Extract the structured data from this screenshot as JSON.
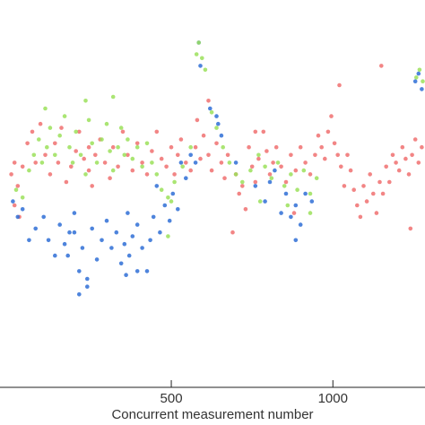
{
  "chart_data": {
    "type": "scatter",
    "xlabel": "Concurrent measurement number",
    "ylabel": "",
    "xlim": [
      -30,
      1285
    ],
    "ylim": [
      0,
      100
    ],
    "x_ticks": [
      500,
      1000
    ],
    "x_tick_labels": [
      "500",
      "1000"
    ],
    "y_ticks": [],
    "grid": false,
    "legend": "none",
    "series": [
      {
        "color": "#f07070",
        "points": [
          [
            5,
            55
          ],
          [
            15,
            58
          ],
          [
            25,
            52
          ],
          [
            40,
            57
          ],
          [
            55,
            63
          ],
          [
            70,
            66
          ],
          [
            80,
            58
          ],
          [
            95,
            68
          ],
          [
            110,
            60
          ],
          [
            125,
            55
          ],
          [
            140,
            63
          ],
          [
            150,
            58
          ],
          [
            160,
            67
          ],
          [
            175,
            53
          ],
          [
            190,
            57
          ],
          [
            205,
            61
          ],
          [
            215,
            66
          ],
          [
            230,
            59
          ],
          [
            245,
            56
          ],
          [
            255,
            52
          ],
          [
            265,
            60
          ],
          [
            280,
            64
          ],
          [
            295,
            58
          ],
          [
            310,
            54
          ],
          [
            320,
            62
          ],
          [
            335,
            57
          ],
          [
            350,
            66
          ],
          [
            365,
            60
          ],
          [
            380,
            56
          ],
          [
            395,
            63
          ],
          [
            410,
            58
          ],
          [
            425,
            55
          ],
          [
            440,
            61
          ],
          [
            455,
            66
          ],
          [
            470,
            59
          ],
          [
            485,
            57
          ],
          [
            500,
            62
          ],
          [
            510,
            55
          ],
          [
            520,
            60
          ],
          [
            530,
            64
          ],
          [
            545,
            58
          ],
          [
            560,
            56
          ],
          [
            575,
            62
          ],
          [
            590,
            59
          ],
          [
            600,
            65
          ],
          [
            615,
            60
          ],
          [
            625,
            56
          ],
          [
            640,
            63
          ],
          [
            655,
            58
          ],
          [
            665,
            54
          ],
          [
            675,
            60
          ],
          [
            690,
            40
          ],
          [
            700,
            55
          ],
          [
            710,
            50
          ],
          [
            720,
            52
          ],
          [
            730,
            46
          ],
          [
            740,
            62
          ],
          [
            750,
            57
          ],
          [
            760,
            53
          ],
          [
            770,
            59
          ],
          [
            785,
            66
          ],
          [
            795,
            61
          ],
          [
            805,
            55
          ],
          [
            815,
            58
          ],
          [
            825,
            62
          ],
          [
            840,
            57
          ],
          [
            855,
            53
          ],
          [
            870,
            60
          ],
          [
            885,
            56
          ],
          [
            900,
            62
          ],
          [
            915,
            58
          ],
          [
            930,
            55
          ],
          [
            945,
            60
          ],
          [
            955,
            65
          ],
          [
            965,
            62
          ],
          [
            975,
            59
          ],
          [
            985,
            66
          ],
          [
            995,
            70
          ],
          [
            1005,
            63
          ],
          [
            1015,
            60
          ],
          [
            1025,
            57
          ],
          [
            1035,
            52
          ],
          [
            1045,
            60
          ],
          [
            1055,
            56
          ],
          [
            1065,
            51
          ],
          [
            1075,
            47
          ],
          [
            1085,
            44
          ],
          [
            1095,
            52
          ],
          [
            1105,
            48
          ],
          [
            1115,
            55
          ],
          [
            1125,
            50
          ],
          [
            1135,
            45
          ],
          [
            1145,
            53
          ],
          [
            1155,
            50
          ],
          [
            1165,
            57
          ],
          [
            1175,
            53
          ],
          [
            1185,
            60
          ],
          [
            1195,
            58
          ],
          [
            1205,
            56
          ],
          [
            1215,
            62
          ],
          [
            1225,
            59
          ],
          [
            1235,
            55
          ],
          [
            1245,
            60
          ],
          [
            1255,
            64
          ],
          [
            1265,
            58
          ],
          [
            1275,
            62
          ],
          [
            1020,
            78
          ],
          [
            1150,
            83
          ],
          [
            615,
            74
          ],
          [
            760,
            66
          ],
          [
            30,
            44
          ],
          [
            15,
            47
          ],
          [
            245,
            62
          ],
          [
            580,
            69
          ],
          [
            880,
            45
          ],
          [
            1240,
            41
          ]
        ]
      },
      {
        "color": "#2f6fd6",
        "points": [
          [
            10,
            48
          ],
          [
            25,
            44
          ],
          [
            40,
            46
          ],
          [
            60,
            38
          ],
          [
            80,
            41
          ],
          [
            105,
            44
          ],
          [
            120,
            38
          ],
          [
            140,
            34
          ],
          [
            155,
            42
          ],
          [
            170,
            37
          ],
          [
            185,
            40
          ],
          [
            200,
            45
          ],
          [
            215,
            30
          ],
          [
            225,
            36
          ],
          [
            240,
            28
          ],
          [
            255,
            41
          ],
          [
            270,
            33
          ],
          [
            285,
            38
          ],
          [
            300,
            43
          ],
          [
            315,
            36
          ],
          [
            330,
            40
          ],
          [
            345,
            32
          ],
          [
            355,
            37
          ],
          [
            365,
            45
          ],
          [
            370,
            34
          ],
          [
            380,
            39
          ],
          [
            395,
            42
          ],
          [
            410,
            36
          ],
          [
            425,
            30
          ],
          [
            435,
            38
          ],
          [
            445,
            44
          ],
          [
            455,
            52
          ],
          [
            465,
            40
          ],
          [
            480,
            47
          ],
          [
            495,
            43
          ],
          [
            505,
            50
          ],
          [
            530,
            58
          ],
          [
            545,
            54
          ],
          [
            560,
            60
          ],
          [
            585,
            89
          ],
          [
            590,
            83
          ],
          [
            620,
            72
          ],
          [
            640,
            70
          ],
          [
            655,
            65
          ],
          [
            700,
            58
          ],
          [
            760,
            52
          ],
          [
            790,
            48
          ],
          [
            805,
            53
          ],
          [
            820,
            56
          ],
          [
            840,
            45
          ],
          [
            855,
            50
          ],
          [
            870,
            44
          ],
          [
            885,
            47
          ],
          [
            900,
            42
          ],
          [
            915,
            50
          ],
          [
            935,
            48
          ],
          [
            1255,
            79
          ],
          [
            1265,
            81
          ],
          [
            1275,
            77
          ],
          [
            215,
            24
          ],
          [
            240,
            26
          ],
          [
            200,
            40
          ],
          [
            180,
            34
          ],
          [
            360,
            29
          ],
          [
            395,
            30
          ],
          [
            520,
            46
          ],
          [
            885,
            38
          ],
          [
            575,
            58
          ],
          [
            645,
            68
          ]
        ]
      },
      {
        "color": "#9be05a",
        "points": [
          [
            20,
            51
          ],
          [
            40,
            49
          ],
          [
            60,
            56
          ],
          [
            75,
            60
          ],
          [
            90,
            64
          ],
          [
            100,
            58
          ],
          [
            115,
            62
          ],
          [
            125,
            67
          ],
          [
            140,
            60
          ],
          [
            155,
            65
          ],
          [
            170,
            70
          ],
          [
            185,
            62
          ],
          [
            195,
            58
          ],
          [
            205,
            66
          ],
          [
            220,
            60
          ],
          [
            235,
            55
          ],
          [
            245,
            69
          ],
          [
            255,
            63
          ],
          [
            270,
            58
          ],
          [
            285,
            64
          ],
          [
            300,
            68
          ],
          [
            310,
            61
          ],
          [
            320,
            56
          ],
          [
            335,
            62
          ],
          [
            345,
            67
          ],
          [
            355,
            60
          ],
          [
            365,
            64
          ],
          [
            380,
            59
          ],
          [
            395,
            62
          ],
          [
            410,
            57
          ],
          [
            425,
            63
          ],
          [
            440,
            58
          ],
          [
            455,
            55
          ],
          [
            470,
            51
          ],
          [
            490,
            49
          ],
          [
            510,
            53
          ],
          [
            535,
            57
          ],
          [
            560,
            62
          ],
          [
            578,
            86
          ],
          [
            585,
            89
          ],
          [
            595,
            85
          ],
          [
            605,
            82
          ],
          [
            625,
            71
          ],
          [
            640,
            67
          ],
          [
            660,
            62
          ],
          [
            680,
            58
          ],
          [
            700,
            55
          ],
          [
            720,
            53
          ],
          [
            745,
            56
          ],
          [
            770,
            60
          ],
          [
            790,
            57
          ],
          [
            810,
            54
          ],
          [
            830,
            58
          ],
          [
            850,
            52
          ],
          [
            870,
            55
          ],
          [
            890,
            51
          ],
          [
            910,
            56
          ],
          [
            930,
            50
          ],
          [
            950,
            54
          ],
          [
            1258,
            80
          ],
          [
            1268,
            82
          ],
          [
            1278,
            79
          ],
          [
            235,
            74
          ],
          [
            110,
            72
          ],
          [
            320,
            75
          ],
          [
            500,
            48
          ],
          [
            930,
            45
          ],
          [
            775,
            48
          ],
          [
            860,
            47
          ],
          [
            490,
            39
          ]
        ]
      }
    ]
  }
}
